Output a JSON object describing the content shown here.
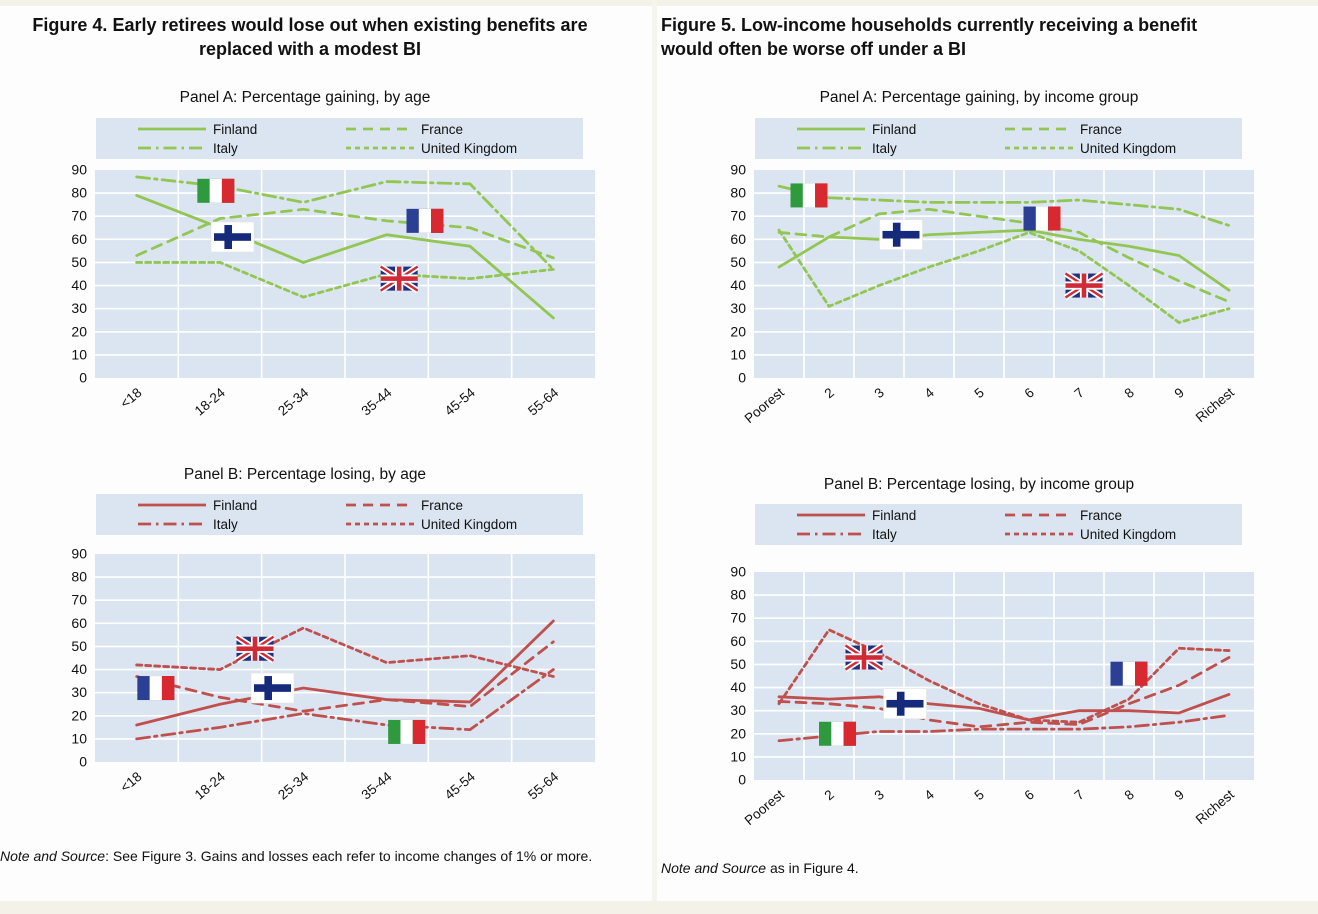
{
  "colors": {
    "green": "#92c653",
    "red": "#c0504d",
    "plot_bg": "#dbe5f1",
    "grid": "#ffffff",
    "legend_bg": "#dbe5f1",
    "strip": "#f4f1e8"
  },
  "figure4": {
    "title": "Figure 4. Early retirees would lose out when existing benefits are replaced with a modest BI",
    "note_lead": "Note and Source",
    "note_body": ": See Figure 3. Gains and losses each refer to income changes of 1% or more."
  },
  "figure5": {
    "title": "Figure 5. Low-income households currently receiving a benefit would often be worse off under a BI",
    "note_lead": "Note and Source",
    "note_body": " as in Figure 4."
  },
  "chart_data": [
    {
      "id": "figure4-panel-a",
      "type": "line",
      "title": "Panel A: Percentage gaining, by age",
      "line_color": "#92c653",
      "categories": [
        "<18",
        "18-24",
        "25-34",
        "35-44",
        "45-54",
        "55-64"
      ],
      "ylim": [
        0,
        90
      ],
      "ytick_step": 10,
      "grid": true,
      "legend_position": "top",
      "xlabel_space": 56,
      "series": [
        {
          "name": "Finland",
          "dash": "solid",
          "values": [
            79,
            65,
            50,
            62,
            57,
            26
          ]
        },
        {
          "name": "Italy",
          "dash": "dashdot",
          "values": [
            87,
            83,
            76,
            85,
            84,
            47
          ]
        },
        {
          "name": "France",
          "dash": "dash",
          "values": [
            53,
            69,
            73,
            68,
            65,
            52
          ]
        },
        {
          "name": "United Kingdom",
          "dash": "shortdash",
          "values": [
            50,
            50,
            35,
            45,
            43,
            47
          ]
        }
      ],
      "flags": [
        {
          "flag": "italy",
          "x": 0.95,
          "y": 81
        },
        {
          "flag": "finland",
          "x": 1.15,
          "y": 61
        },
        {
          "flag": "france",
          "x": 3.46,
          "y": 68
        },
        {
          "flag": "uk",
          "x": 3.15,
          "y": 43
        }
      ]
    },
    {
      "id": "figure4-panel-b",
      "type": "line",
      "title": "Panel B: Percentage losing, by age",
      "line_color": "#c0504d",
      "categories": [
        "<18",
        "18-24",
        "25-34",
        "35-44",
        "45-54",
        "55-64"
      ],
      "ylim": [
        0,
        90
      ],
      "ytick_step": 10,
      "grid": true,
      "legend_position": "top",
      "xlabel_space": 56,
      "series": [
        {
          "name": "Finland",
          "dash": "solid",
          "values": [
            16,
            25,
            32,
            27,
            26,
            61
          ]
        },
        {
          "name": "Italy",
          "dash": "dashdot",
          "values": [
            10,
            15,
            21,
            16,
            14,
            40
          ]
        },
        {
          "name": "France",
          "dash": "dash",
          "values": [
            37,
            28,
            22,
            27,
            24,
            52
          ]
        },
        {
          "name": "United Kingdom",
          "dash": "shortdash",
          "values": [
            42,
            40,
            58,
            43,
            46,
            37
          ]
        }
      ],
      "flags": [
        {
          "flag": "france",
          "x": 0.23,
          "y": 32
        },
        {
          "flag": "uk",
          "x": 1.42,
          "y": 49
        },
        {
          "flag": "finland",
          "x": 1.63,
          "y": 32
        },
        {
          "flag": "italy",
          "x": 3.24,
          "y": 13
        }
      ]
    },
    {
      "id": "figure5-panel-a",
      "type": "line",
      "title": "Panel A: Percentage gaining, by income group",
      "line_color": "#92c653",
      "categories": [
        "Poorest",
        "2",
        "3",
        "4",
        "5",
        "6",
        "7",
        "8",
        "9",
        "Richest"
      ],
      "ylim": [
        0,
        90
      ],
      "ytick_step": 10,
      "grid": true,
      "legend_position": "top",
      "xlabel_space": 74,
      "series": [
        {
          "name": "Finland",
          "dash": "solid",
          "values": [
            48,
            61,
            60,
            62,
            63,
            64,
            60,
            57,
            53,
            38
          ]
        },
        {
          "name": "Italy",
          "dash": "dashdot",
          "values": [
            83,
            78,
            77,
            76,
            76,
            76,
            77,
            75,
            73,
            66
          ]
        },
        {
          "name": "France",
          "dash": "dash",
          "values": [
            63,
            61,
            71,
            73,
            70,
            67,
            63,
            52,
            42,
            33
          ]
        },
        {
          "name": "United Kingdom",
          "dash": "shortdash",
          "values": [
            64,
            31,
            40,
            48,
            55,
            63,
            55,
            40,
            24,
            30
          ]
        }
      ],
      "flags": [
        {
          "flag": "italy",
          "x": 0.6,
          "y": 79
        },
        {
          "flag": "finland",
          "x": 2.44,
          "y": 62
        },
        {
          "flag": "france",
          "x": 5.26,
          "y": 69
        },
        {
          "flag": "uk",
          "x": 6.1,
          "y": 40
        }
      ]
    },
    {
      "id": "figure5-panel-b",
      "type": "line",
      "title": "Panel B: Percentage losing, by income group",
      "line_color": "#c0504d",
      "categories": [
        "Poorest",
        "2",
        "3",
        "4",
        "5",
        "6",
        "7",
        "8",
        "9",
        "Richest"
      ],
      "ylim": [
        0,
        90
      ],
      "ytick_step": 10,
      "grid": true,
      "legend_position": "top",
      "xlabel_space": 74,
      "series": [
        {
          "name": "Finland",
          "dash": "solid",
          "values": [
            36,
            35,
            36,
            33,
            31,
            26,
            30,
            30,
            29,
            37
          ]
        },
        {
          "name": "Italy",
          "dash": "dashdot",
          "values": [
            17,
            19,
            21,
            21,
            22,
            22,
            22,
            23,
            25,
            28
          ]
        },
        {
          "name": "France",
          "dash": "dash",
          "values": [
            34,
            33,
            31,
            26,
            23,
            25,
            24,
            33,
            41,
            53
          ]
        },
        {
          "name": "United Kingdom",
          "dash": "shortdash",
          "values": [
            33,
            65,
            55,
            43,
            33,
            26,
            25,
            35,
            57,
            56
          ]
        }
      ],
      "flags": [
        {
          "flag": "italy",
          "x": 1.17,
          "y": 20
        },
        {
          "flag": "uk",
          "x": 1.7,
          "y": 53
        },
        {
          "flag": "finland",
          "x": 2.52,
          "y": 33
        },
        {
          "flag": "france",
          "x": 7.0,
          "y": 46
        }
      ]
    }
  ]
}
